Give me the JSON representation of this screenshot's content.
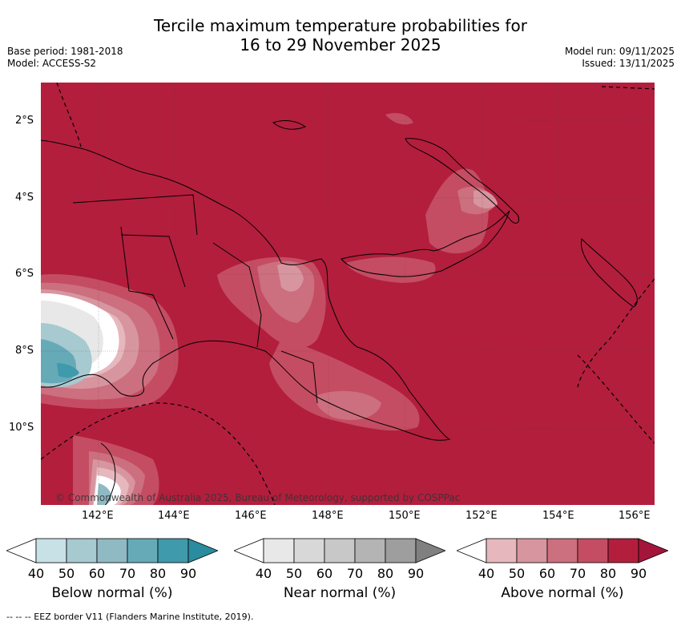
{
  "title": {
    "line1": "Tercile maximum temperature probabilities for",
    "line2": "16 to 29 November 2025"
  },
  "meta": {
    "base_period": "Base period: 1981-2018",
    "model": "Model: ACCESS-S2",
    "model_run": "Model run: 09/11/2025",
    "issued": "Issued: 13/11/2025"
  },
  "map": {
    "lat_labels": [
      "2°S",
      "4°S",
      "6°S",
      "8°S",
      "10°S"
    ],
    "lon_labels": [
      "142°E",
      "144°E",
      "146°E",
      "148°E",
      "150°E",
      "152°E",
      "154°E",
      "156°E"
    ],
    "lon_range": [
      140.5,
      156.5
    ],
    "lat_range": [
      -12,
      -1
    ],
    "copyright": "© Commonwealth of Australia 2025, Bureau of Meteorology, supported by COSPPac",
    "colors": {
      "above_90": "#b31e3d",
      "above_80": "#c44d63",
      "above_70": "#cc6f7e",
      "above_60": "#d7959f",
      "above_50": "#e6b8be",
      "near_40": "#e8e8e8",
      "below_50": "#a7c9d0",
      "below_70": "#66aab8",
      "below_80": "#3f9aab"
    }
  },
  "legends": [
    {
      "title": "Below normal (%)",
      "ticks": [
        "40",
        "50",
        "60",
        "70",
        "80",
        "90"
      ],
      "colors": [
        "#ffffff",
        "#c8e1e6",
        "#a7c9d0",
        "#8fb9c3",
        "#66aab8",
        "#3f9aab",
        "#2a8c9e"
      ]
    },
    {
      "title": "Near normal (%)",
      "ticks": [
        "40",
        "50",
        "60",
        "70",
        "80",
        "90"
      ],
      "colors": [
        "#ffffff",
        "#e8e8e8",
        "#d8d8d8",
        "#c8c8c8",
        "#b4b4b4",
        "#9e9e9e",
        "#808080"
      ]
    },
    {
      "title": "Above normal (%)",
      "ticks": [
        "40",
        "50",
        "60",
        "70",
        "80",
        "90"
      ],
      "colors": [
        "#ffffff",
        "#e6b8be",
        "#d7959f",
        "#cc6f7e",
        "#c44d63",
        "#b31e3d",
        "#a3153a"
      ]
    }
  ],
  "footer": "--  --  -- EEZ border V11 (Flanders Marine Institute, 2019)."
}
